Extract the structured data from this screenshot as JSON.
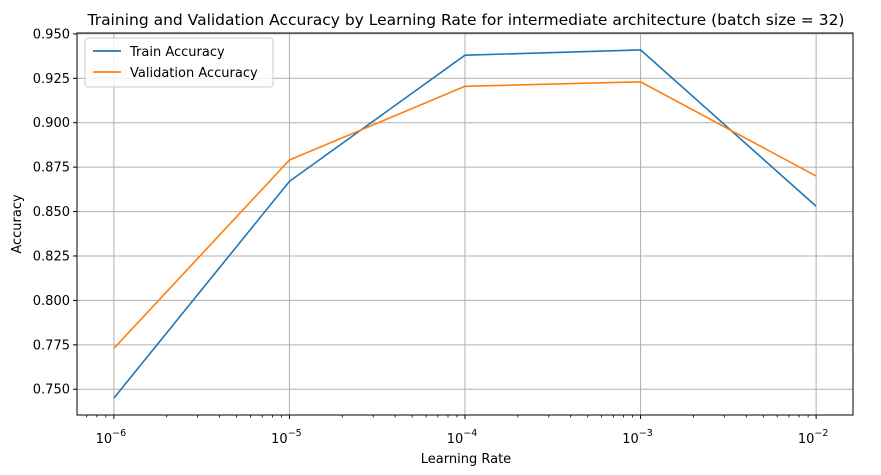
{
  "chart_data": {
    "type": "line",
    "title": "Training and Validation Accuracy by Learning Rate for intermediate architecture (batch size = 32)",
    "xlabel": "Learning Rate",
    "ylabel": "Accuracy",
    "xscale": "log",
    "x": [
      1e-06,
      1e-05,
      0.0001,
      0.001,
      0.01
    ],
    "x_tick_labels": [
      {
        "base": "10",
        "exp": "−6"
      },
      {
        "base": "10",
        "exp": "−5"
      },
      {
        "base": "10",
        "exp": "−4"
      },
      {
        "base": "10",
        "exp": "−3"
      },
      {
        "base": "10",
        "exp": "−2"
      }
    ],
    "y_ticks": [
      "0.750",
      "0.775",
      "0.800",
      "0.825",
      "0.850",
      "0.875",
      "0.900",
      "0.925",
      "0.950"
    ],
    "ylim": [
      0.7355,
      0.9505
    ],
    "grid": true,
    "legend_position": "upper-left",
    "series": [
      {
        "name": "Train Accuracy",
        "color": "#1f77b4",
        "values": [
          0.745,
          0.867,
          0.938,
          0.941,
          0.853
        ]
      },
      {
        "name": "Validation Accuracy",
        "color": "#ff7f0e",
        "values": [
          0.773,
          0.879,
          0.9205,
          0.923,
          0.87
        ]
      }
    ]
  }
}
